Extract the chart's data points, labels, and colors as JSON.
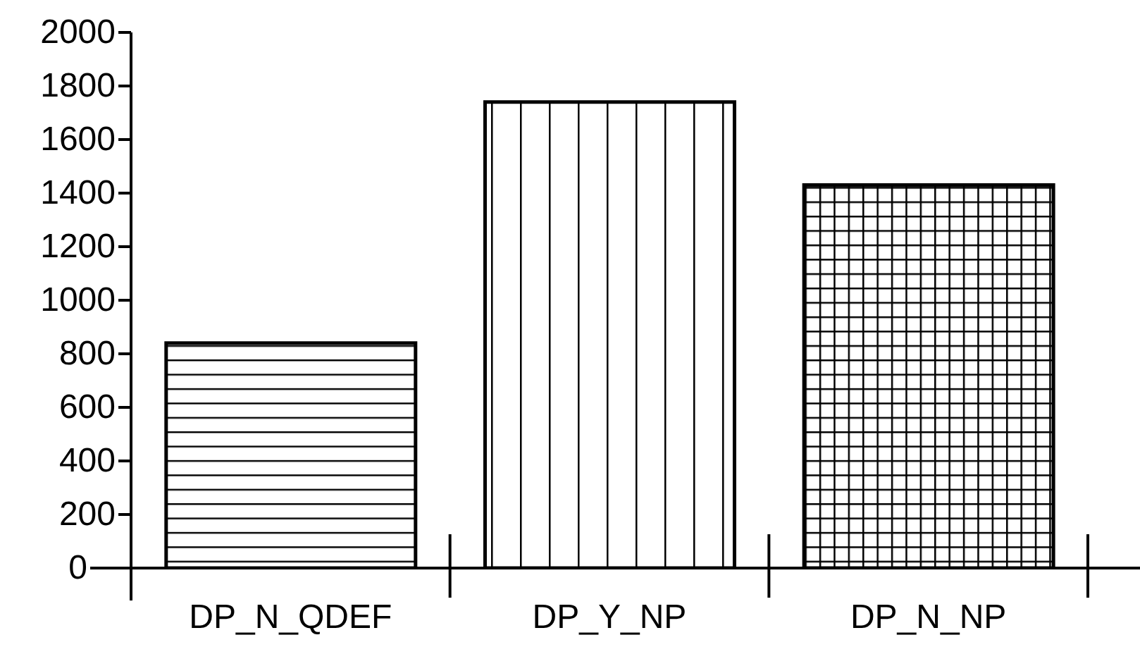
{
  "chart_data": {
    "type": "bar",
    "categories": [
      "DP_N_QDEF",
      "DP_Y_NP",
      "DP_N_NP"
    ],
    "values": [
      840,
      1740,
      1430
    ],
    "colors": [
      "#000000",
      "#000000",
      "#000000"
    ],
    "ylim": [
      0,
      2000
    ],
    "yticks": [
      0,
      200,
      400,
      600,
      800,
      1000,
      1200,
      1400,
      1600,
      1800,
      2000
    ],
    "grid": false,
    "legend": false
  }
}
